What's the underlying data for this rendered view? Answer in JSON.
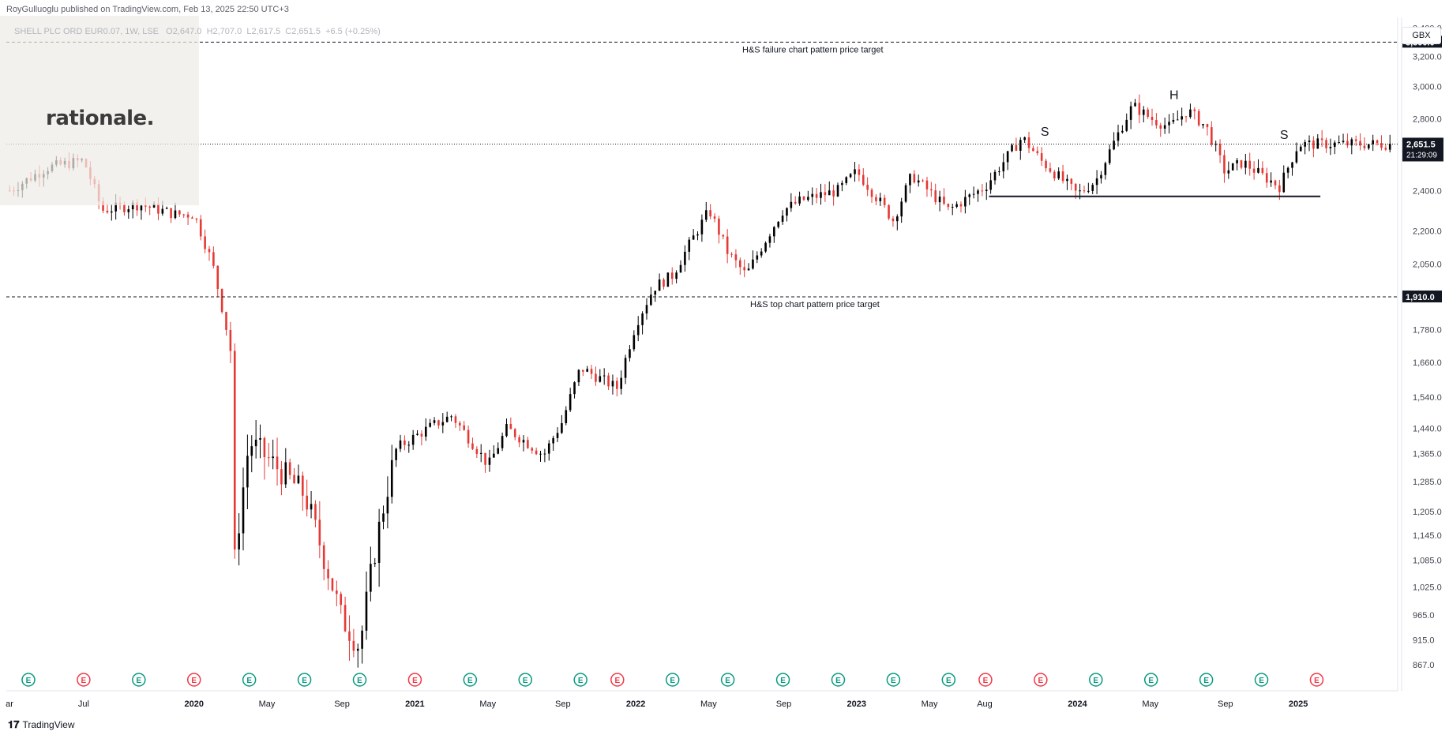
{
  "header": {
    "published": "RoyGulluoglu published on TradingView.com, Feb 13, 2025 22:50 UTC+3",
    "symbol": "SHELL PLC ORD EUR0.07, 1W, LSE",
    "open": "O2,647.0",
    "high": "H2,707.0",
    "low": "L2,617.5",
    "close": "C2,651.5",
    "change": "+6.5 (+0.25%)"
  },
  "logo": {
    "text": "rationale."
  },
  "currency": "GBX",
  "brand": {
    "text": "TradingView",
    "icon": "tradingview-logo-icon"
  },
  "colors": {
    "up": "#000000",
    "down": "#e53935",
    "accent": "#131722"
  },
  "chart_data": {
    "type": "candlestick",
    "title": "",
    "ylim": [
      820,
      3480
    ],
    "y_scale": "log",
    "y_ticks": [
      867,
      915,
      965,
      1025,
      1085,
      1145,
      1205,
      1285,
      1365,
      1440,
      1540,
      1660,
      1780,
      1910,
      2050,
      2200,
      2400,
      2600,
      2800,
      3000,
      3200,
      3300,
      3400
    ],
    "y_tick_labels": [
      "867.0",
      "915.0",
      "965.0",
      "1,025.0",
      "1,085.0",
      "1,145.0",
      "1,205.0",
      "1,285.0",
      "1,365.0",
      "1,440.0",
      "1,540.0",
      "1,660.0",
      "1,780.0",
      "1,910.0",
      "2,050.0",
      "2,200.0",
      "2,400.0",
      "2,600.0",
      "2,800.0",
      "3,000.0",
      "3,200.0",
      "3,300.0",
      "3,400.0"
    ],
    "x_labels": [
      "ar",
      "Jul",
      "2020",
      "May",
      "Sep",
      "2021",
      "May",
      "Sep",
      "2022",
      "May",
      "Sep",
      "2023",
      "May",
      "Aug",
      "2024",
      "May",
      "Sep",
      "2025"
    ],
    "price_series": [
      [
        "2019-03",
        2400
      ],
      [
        "2019-05",
        2520
      ],
      [
        "2019-07",
        2560
      ],
      [
        "2019-08",
        2300
      ],
      [
        "2019-10",
        2330
      ],
      [
        "2019-12",
        2280
      ],
      [
        "2020-01",
        2280
      ],
      [
        "2020-02",
        2050
      ],
      [
        "2020-03",
        1700
      ],
      [
        "2020-03",
        1000
      ],
      [
        "2020-04",
        1400
      ],
      [
        "2020-05",
        1350
      ],
      [
        "2020-07",
        1250
      ],
      [
        "2020-08",
        1100
      ],
      [
        "2020-09",
        960
      ],
      [
        "2020-10",
        900
      ],
      [
        "2020-11",
        1150
      ],
      [
        "2020-12",
        1380
      ],
      [
        "2021-02",
        1450
      ],
      [
        "2021-03",
        1480
      ],
      [
        "2021-05",
        1330
      ],
      [
        "2021-06",
        1440
      ],
      [
        "2021-08",
        1360
      ],
      [
        "2021-09",
        1460
      ],
      [
        "2021-10",
        1640
      ],
      [
        "2021-12",
        1570
      ],
      [
        "2022-01",
        1800
      ],
      [
        "2022-02",
        1950
      ],
      [
        "2022-03",
        2000
      ],
      [
        "2022-05",
        2300
      ],
      [
        "2022-06",
        2100
      ],
      [
        "2022-07",
        2000
      ],
      [
        "2022-09",
        2300
      ],
      [
        "2022-10",
        2350
      ],
      [
        "2022-12",
        2400
      ],
      [
        "2023-01",
        2500
      ],
      [
        "2023-03",
        2250
      ],
      [
        "2023-04",
        2480
      ],
      [
        "2023-06",
        2300
      ],
      [
        "2023-08",
        2420
      ],
      [
        "2023-10",
        2690
      ],
      [
        "2023-11",
        2560
      ],
      [
        "2024-01",
        2380
      ],
      [
        "2024-02",
        2450
      ],
      [
        "2024-04",
        2880
      ],
      [
        "2024-05",
        2800
      ],
      [
        "2024-06",
        2750
      ],
      [
        "2024-07",
        2850
      ],
      [
        "2024-08",
        2750
      ],
      [
        "2024-09",
        2500
      ],
      [
        "2024-10",
        2550
      ],
      [
        "2024-11",
        2480
      ],
      [
        "2024-12",
        2420
      ],
      [
        "2025-01",
        2650
      ],
      [
        "2025-02",
        2651.5
      ]
    ],
    "current_price": {
      "value": 2651.5,
      "label": "2,651.5",
      "countdown": "21:29:09"
    },
    "horizontal_levels": [
      {
        "value": 3300,
        "label": "3,300.0",
        "text": "H&S failure chart pattern price target"
      },
      {
        "value": 1910,
        "label": "1,910.0",
        "text": "H&S top chart pattern price target"
      }
    ],
    "neckline": {
      "value": 2370
    },
    "pattern_labels": [
      {
        "text": "S",
        "x": "2023-11",
        "y": 2700
      },
      {
        "text": "H",
        "x": "2024-06",
        "y": 2920
      },
      {
        "text": "S",
        "x": "2024-12",
        "y": 2680
      }
    ],
    "dividend_markers": [
      {
        "date": "2019-04",
        "direction": "up"
      },
      {
        "date": "2019-07",
        "direction": "down"
      },
      {
        "date": "2019-10",
        "direction": "up"
      },
      {
        "date": "2020-01",
        "direction": "down"
      },
      {
        "date": "2020-04",
        "direction": "up"
      },
      {
        "date": "2020-07",
        "direction": "up"
      },
      {
        "date": "2020-10",
        "direction": "up"
      },
      {
        "date": "2021-01",
        "direction": "down"
      },
      {
        "date": "2021-04",
        "direction": "up"
      },
      {
        "date": "2021-07",
        "direction": "up"
      },
      {
        "date": "2021-10",
        "direction": "up"
      },
      {
        "date": "2021-12",
        "direction": "down"
      },
      {
        "date": "2022-03",
        "direction": "up"
      },
      {
        "date": "2022-06",
        "direction": "up"
      },
      {
        "date": "2022-09",
        "direction": "up"
      },
      {
        "date": "2022-12",
        "direction": "up"
      },
      {
        "date": "2023-03",
        "direction": "up"
      },
      {
        "date": "2023-06",
        "direction": "up"
      },
      {
        "date": "2023-08",
        "direction": "down"
      },
      {
        "date": "2023-11",
        "direction": "down"
      },
      {
        "date": "2024-02",
        "direction": "up"
      },
      {
        "date": "2024-05",
        "direction": "up"
      },
      {
        "date": "2024-08",
        "direction": "up"
      },
      {
        "date": "2024-11",
        "direction": "up"
      },
      {
        "date": "2025-02",
        "direction": "down"
      }
    ]
  }
}
